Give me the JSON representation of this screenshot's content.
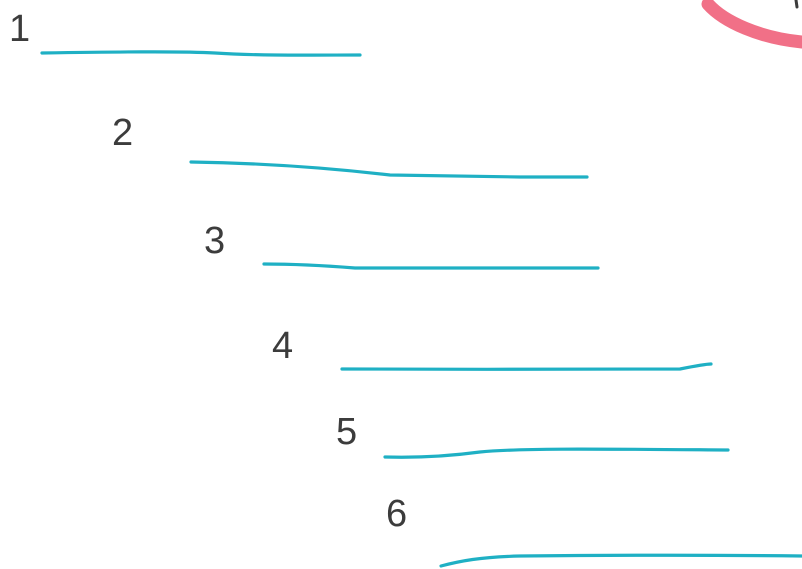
{
  "list": {
    "items": [
      {
        "number": "1"
      },
      {
        "number": "2"
      },
      {
        "number": "3"
      },
      {
        "number": "4"
      },
      {
        "number": "5"
      },
      {
        "number": "6"
      }
    ]
  },
  "colors": {
    "background": "#ffffff",
    "number_text": "#3c3c3c",
    "blank_line": "#1fb0c4",
    "marker_stroke": "#f0607a"
  },
  "icons": {
    "corner_mark": "pink-marker-arc"
  }
}
